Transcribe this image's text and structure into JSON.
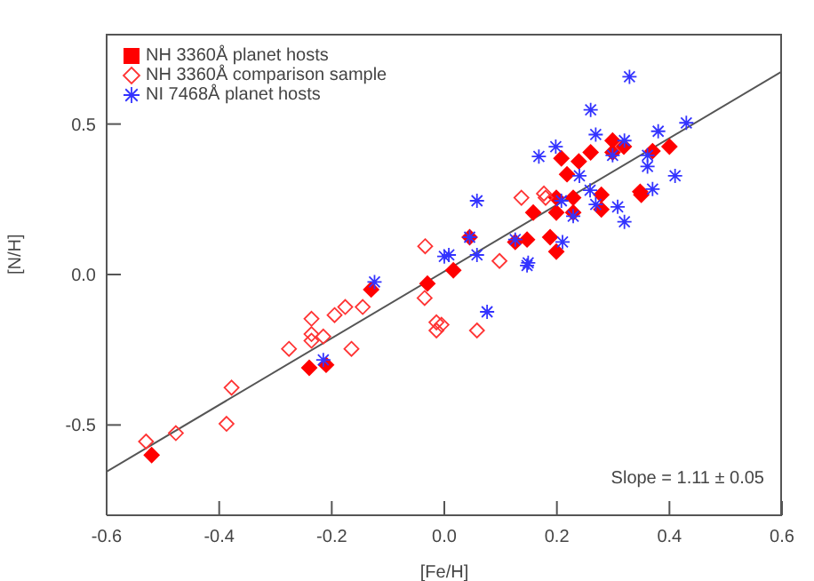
{
  "chart_data": {
    "type": "scatter",
    "xlabel": "[Fe/H]",
    "ylabel": "[N/H]",
    "xlim": [
      -0.6,
      0.6
    ],
    "ylim": [
      -0.8,
      0.8
    ],
    "xticks": [
      {
        "value": -0.6,
        "label": "-0.6"
      },
      {
        "value": -0.4,
        "label": "-0.4"
      },
      {
        "value": -0.2,
        "label": "-0.2"
      },
      {
        "value": 0,
        "label": "0.0"
      },
      {
        "value": 0.2,
        "label": "0.2"
      },
      {
        "value": 0.4,
        "label": "0.4"
      },
      {
        "value": 0.6,
        "label": "0.6"
      }
    ],
    "yticks": [
      {
        "value": -0.5,
        "label": "-0.5"
      },
      {
        "value": 0,
        "label": "0.0"
      },
      {
        "value": 0.5,
        "label": "0.5"
      }
    ],
    "grid": false,
    "legend": "top left",
    "annotations": [
      "Slope = 1.11 ± 0.05"
    ],
    "series": [
      {
        "name": "NH 3360Å planet hosts",
        "color": "#ff0000",
        "marker": "diamond",
        "x": [
          -0.52,
          -0.24,
          -0.21,
          -0.13,
          -0.03,
          0.016,
          0.045,
          0.126,
          0.147,
          0.158,
          0.188,
          0.199,
          0.199,
          0.199,
          0.229,
          0.229,
          0.279,
          0.279,
          0.218,
          0.208,
          0.239,
          0.26,
          0.299,
          0.299,
          0.319,
          0.348,
          0.35,
          0.37,
          0.4
        ],
        "values": [
          -0.6,
          -0.31,
          -0.3,
          -0.05,
          -0.03,
          0.014,
          0.124,
          0.108,
          0.116,
          0.206,
          0.124,
          0.076,
          0.206,
          0.255,
          0.206,
          0.255,
          0.265,
          0.216,
          0.333,
          0.386,
          0.376,
          0.406,
          0.445,
          0.406,
          0.425,
          0.275,
          0.265,
          0.41,
          0.425
        ]
      },
      {
        "name": "NH 3360Å comparison sample",
        "color": "#ff3333",
        "marker": "diamond-open",
        "x": [
          -0.53,
          -0.477,
          -0.387,
          -0.378,
          -0.276,
          -0.236,
          -0.236,
          -0.236,
          -0.215,
          -0.195,
          -0.176,
          -0.165,
          -0.145,
          -0.035,
          -0.014,
          -0.014,
          -0.005,
          0.058,
          -0.034,
          0.098,
          0.137,
          0.177,
          0.18
        ],
        "values": [
          -0.555,
          -0.527,
          -0.496,
          -0.376,
          -0.247,
          -0.147,
          -0.198,
          -0.22,
          -0.206,
          -0.135,
          -0.108,
          -0.247,
          -0.108,
          -0.078,
          -0.159,
          -0.186,
          -0.167,
          -0.186,
          0.094,
          0.045,
          0.255,
          0.269,
          0.255
        ]
      },
      {
        "name": "NI 7468Å planet hosts",
        "color": "#3333ff",
        "marker": "cross",
        "x": [
          -0.124,
          -0.215,
          0.0,
          0.076,
          0.147,
          0.329,
          0.26,
          0.269,
          0.198,
          0.168,
          0.38,
          0.43,
          0.32,
          0.299,
          0.361,
          0.361,
          0.41,
          0.24,
          0.37,
          0.259,
          0.208,
          0.058,
          0.269,
          0.229,
          0.308,
          0.32,
          0.045,
          0.126,
          0.21,
          0.008,
          0.058,
          0.149
        ],
        "values": [
          -0.025,
          -0.284,
          0.06,
          -0.124,
          0.03,
          0.657,
          0.547,
          0.465,
          0.425,
          0.392,
          0.476,
          0.504,
          0.445,
          0.396,
          0.396,
          0.359,
          0.328,
          0.328,
          0.284,
          0.28,
          0.245,
          0.245,
          0.233,
          0.194,
          0.225,
          0.175,
          0.124,
          0.116,
          0.108,
          0.065,
          0.065,
          0.039
        ]
      },
      {
        "type": "line",
        "color": "#555555",
        "line_style": "solid",
        "marker": "none",
        "x": [
          -0.6,
          0.6
        ],
        "values": [
          -0.655,
          0.675
        ]
      }
    ]
  }
}
